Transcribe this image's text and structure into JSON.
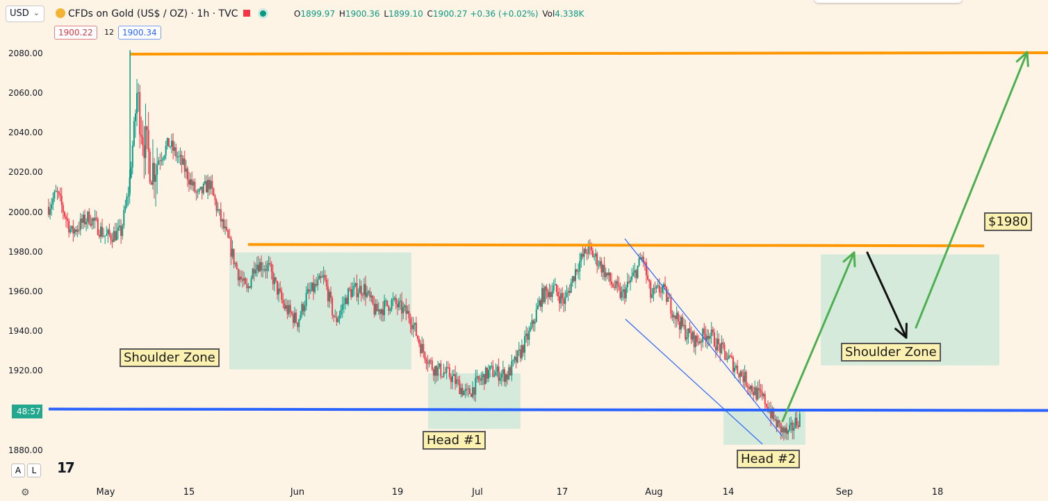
{
  "header": {
    "currency": "USD",
    "title": "CFDs on Gold (US$ / OZ) · 1h · TVC",
    "ohlc": {
      "o_label": "O",
      "o": "1899.97",
      "h_label": "H",
      "h": "1900.36",
      "l_label": "L",
      "l": "1899.10",
      "c_label": "C",
      "c": "1900.27",
      "change": "+0.36 (+0.02%)",
      "vol_label": "Vol",
      "vol": "4.338K"
    },
    "bid": "1900.22",
    "spread": "12",
    "ask": "1900.34"
  },
  "countdown": "48:57",
  "scale_buttons": {
    "auto": "A",
    "log": "L"
  },
  "colors": {
    "background": "#fdf4e6",
    "up": "#089981",
    "down": "#f23645",
    "resistance_line": "#ff9800",
    "support_line": "#2962ff",
    "zone": "#cfe7d9",
    "projection": "#4caf50",
    "channel": "#2962ff"
  },
  "chart_data": {
    "type": "candlestick",
    "symbol": "CFDs on Gold (US$ / OZ)",
    "interval": "1h",
    "ylim": [
      1873,
      2093
    ],
    "y_ticks": [
      1880,
      1900,
      1920,
      1940,
      1960,
      1980,
      2000,
      2020,
      2040,
      2060,
      2080
    ],
    "y_tick_labels": [
      "1880.00",
      "",
      "1920.00",
      "1940.00",
      "1960.00",
      "1980.00",
      "2000.00",
      "2020.00",
      "2040.00",
      "2060.00",
      "2080.00"
    ],
    "x_tick_labels": [
      "May",
      "15",
      "Jun",
      "19",
      "Jul",
      "17",
      "Aug",
      "14",
      "Sep",
      "18"
    ],
    "price_path": [
      [
        0.0,
        2003
      ],
      [
        0.7,
        2010
      ],
      [
        2.0,
        1990
      ],
      [
        3.5,
        1998
      ],
      [
        5.0,
        1988
      ],
      [
        6.3,
        1990
      ],
      [
        7.0,
        2012
      ],
      [
        7.7,
        2060
      ],
      [
        8.2,
        2040
      ],
      [
        9.0,
        2022
      ],
      [
        10.5,
        2035
      ],
      [
        11.7,
        2024
      ],
      [
        13.0,
        2008
      ],
      [
        14.0,
        2015
      ],
      [
        14.8,
        2000
      ],
      [
        15.7,
        1985
      ],
      [
        16.5,
        1970
      ],
      [
        17.3,
        1960
      ],
      [
        18.0,
        1975
      ],
      [
        19.2,
        1972
      ],
      [
        20.5,
        1953
      ],
      [
        21.7,
        1945
      ],
      [
        22.5,
        1958
      ],
      [
        24.0,
        1967
      ],
      [
        25.0,
        1945
      ],
      [
        26.2,
        1960
      ],
      [
        27.5,
        1962
      ],
      [
        28.5,
        1950
      ],
      [
        30.0,
        1955
      ],
      [
        31.5,
        1948
      ],
      [
        32.5,
        1932
      ],
      [
        33.5,
        1922
      ],
      [
        35.0,
        1918
      ],
      [
        36.5,
        1908
      ],
      [
        37.5,
        1915
      ],
      [
        38.5,
        1920
      ],
      [
        40.0,
        1918
      ],
      [
        41.0,
        1928
      ],
      [
        42.0,
        1940
      ],
      [
        43.0,
        1958
      ],
      [
        44.0,
        1962
      ],
      [
        45.0,
        1955
      ],
      [
        46.0,
        1972
      ],
      [
        47.0,
        1982
      ],
      [
        48.0,
        1975
      ],
      [
        49.0,
        1965
      ],
      [
        50.0,
        1958
      ],
      [
        51.0,
        1968
      ],
      [
        51.8,
        1978
      ],
      [
        52.5,
        1958
      ],
      [
        53.5,
        1962
      ],
      [
        54.5,
        1950
      ],
      [
        55.5,
        1940
      ],
      [
        56.5,
        1935
      ],
      [
        57.5,
        1940
      ],
      [
        58.5,
        1932
      ],
      [
        59.5,
        1925
      ],
      [
        60.5,
        1918
      ],
      [
        61.5,
        1910
      ],
      [
        62.5,
        1905
      ],
      [
        63.3,
        1895
      ],
      [
        64.0,
        1890
      ],
      [
        64.5,
        1888
      ],
      [
        65.0,
        1893
      ],
      [
        65.5,
        1897
      ]
    ],
    "annotations": [
      "Shoulder Zone",
      "Head #1",
      "Shoulder Zone",
      "Head #2",
      "$1980"
    ],
    "lines": {
      "resistance_top": 2080,
      "neckline": 1984,
      "support": 1901
    },
    "zones": [
      {
        "label": "Shoulder Zone",
        "from": "May 20",
        "to": "Jun 21",
        "y_range": [
          1921,
          1980
        ]
      },
      {
        "label": "Head #1",
        "from": "Jun 23",
        "to": "Jul 9",
        "y_range": [
          1891,
          1919
        ]
      },
      {
        "label": "Head #2",
        "from": "Aug 14",
        "to": "Aug 27",
        "y_range": [
          1883,
          1900
        ]
      },
      {
        "label": "Shoulder Zone",
        "from": "Aug 30",
        "to": "Sep 23",
        "y_range": [
          1923,
          1979
        ]
      }
    ],
    "projection_targets": [
      1980,
      1937,
      2081
    ]
  }
}
